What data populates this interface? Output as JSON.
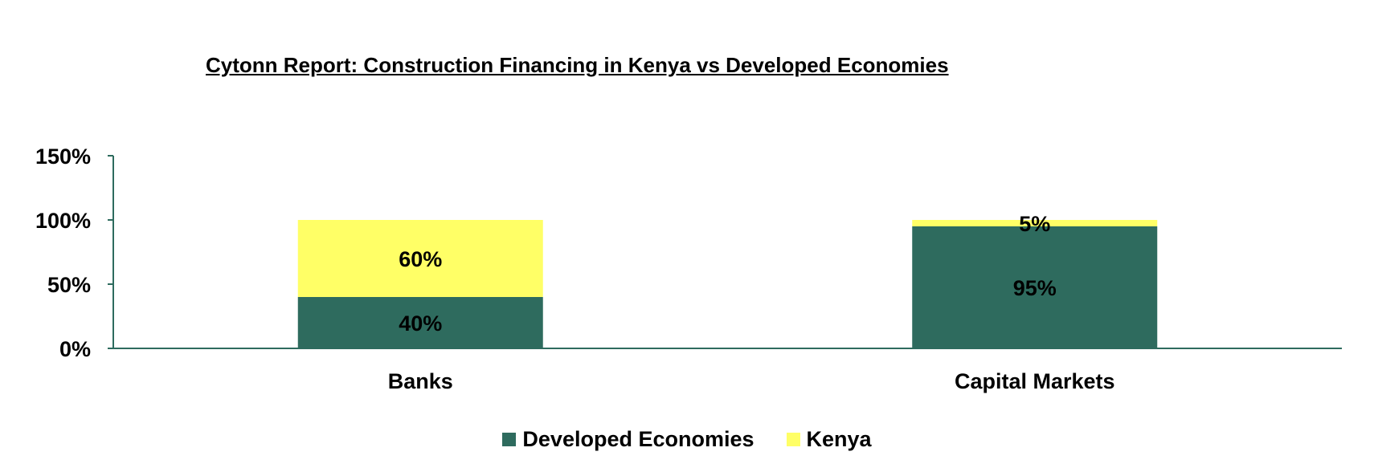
{
  "chart_data": {
    "type": "bar",
    "stacked": true,
    "title": "Cytonn Report: Construction Financing in Kenya vs Developed Economies",
    "categories": [
      "Banks",
      "Capital Markets"
    ],
    "series": [
      {
        "name": "Developed Economies",
        "values": [
          40,
          95
        ],
        "color": "#2E6B5E",
        "labels": [
          "40%",
          "95%"
        ]
      },
      {
        "name": "Kenya",
        "values": [
          60,
          5
        ],
        "color": "#FFFF66",
        "labels": [
          "60%",
          "5%"
        ]
      }
    ],
    "yticks": [
      "0%",
      "50%",
      "100%",
      "150%"
    ],
    "ylim": [
      0,
      150
    ],
    "grid": false,
    "legend": "bottom",
    "axis_color": "#2E6B5E"
  }
}
